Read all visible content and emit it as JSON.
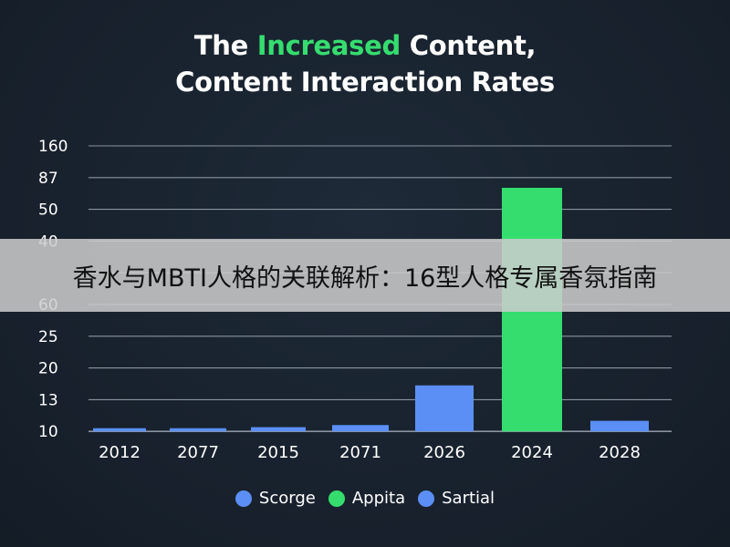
{
  "title": {
    "part1": "The ",
    "highlight": "Increased",
    "part2": " Content,",
    "line2": "Content Interaction Rates"
  },
  "colors": {
    "blue": "#5b8ff5",
    "green": "#35dd6f",
    "grid": "#8a939e"
  },
  "chart_data": {
    "type": "bar",
    "title": "The Increased Content, Content Interaction Rates",
    "y_tick_labels": [
      "160",
      "87",
      "50",
      "40",
      "",
      "60",
      "25",
      "20",
      "13",
      "10"
    ],
    "categories": [
      "2012",
      "2077",
      "2015",
      "2071",
      "2026",
      "2024",
      "2028"
    ],
    "values": [
      10.3,
      10.3,
      10.4,
      10.6,
      15,
      80,
      11
    ],
    "bar_colors": [
      "#5b8ff5",
      "#5b8ff5",
      "#5b8ff5",
      "#5b8ff5",
      "#5b8ff5",
      "#35dd6f",
      "#5b8ff5"
    ],
    "legend": [
      {
        "label": "Scorge",
        "color": "#5b8ff5"
      },
      {
        "label": "Appita",
        "color": "#35dd6f"
      },
      {
        "label": "Sartial",
        "color": "#5b8ff5"
      }
    ],
    "legend_position": "bottom",
    "grid": true
  },
  "banner": {
    "text": "香水与MBTI人格的关联解析：16型人格专属香氛指南"
  }
}
